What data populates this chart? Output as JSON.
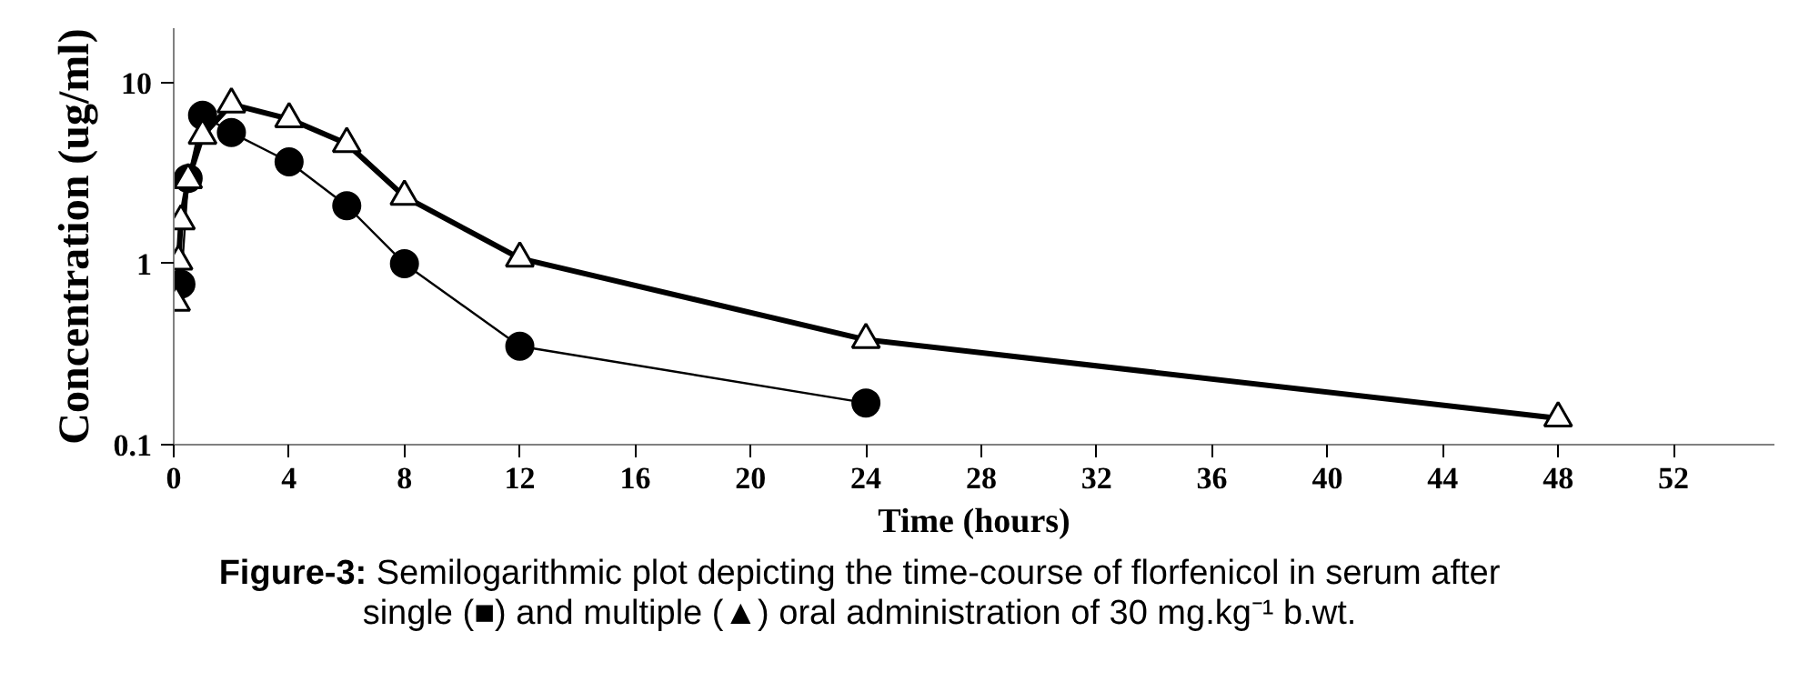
{
  "chart_data": {
    "type": "line",
    "xlabel": "Time (hours)",
    "ylabel": "Concentration (ug/ml)",
    "log": "y",
    "grid": false,
    "line_style": "solid",
    "xlim": [
      0,
      55.5
    ],
    "xticks": [
      0,
      4,
      8,
      12,
      16,
      20,
      24,
      28,
      32,
      36,
      40,
      44,
      48,
      52
    ],
    "ylim": [
      0.1,
      20
    ],
    "yticks": [
      0.1,
      1,
      10
    ],
    "series": [
      {
        "color": "#000000",
        "marker": "circle",
        "x": [
          0.25,
          0.5,
          1,
          2,
          4,
          6,
          8,
          12,
          24
        ],
        "values": [
          0.77,
          2.96,
          6.6,
          5.3,
          3.65,
          2.09,
          1.0,
          0.35,
          0.17
        ]
      },
      {
        "color": "#000000",
        "marker": "triangle",
        "x": [
          0.083,
          0.167,
          0.25,
          0.5,
          1,
          2,
          4,
          6,
          8,
          12,
          24,
          48
        ],
        "values": [
          0.61,
          1.03,
          1.72,
          2.9,
          5.1,
          7.6,
          6.3,
          4.6,
          2.35,
          1.07,
          0.38,
          0.14
        ]
      }
    ],
    "annotations": [
      "Figure-3: Semilogarithmic plot depicting the time-course of florfenicol in serum after single (■) and multiple (▲) oral administration of 30 mg.kg⁻¹ b.wt."
    ]
  }
}
